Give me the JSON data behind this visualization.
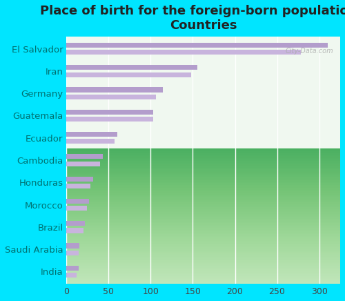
{
  "title": "Place of birth for the foreign-born population -\nCountries",
  "categories": [
    "El Salvador",
    "Iran",
    "Germany",
    "Guatemala",
    "Ecuador",
    "Cambodia",
    "Honduras",
    "Morocco",
    "Brazil",
    "Saudi Arabia",
    "India"
  ],
  "values_top": [
    310,
    155,
    114,
    103,
    60,
    43,
    32,
    27,
    22,
    15,
    14
  ],
  "values_bottom": [
    278,
    148,
    106,
    103,
    57,
    40,
    28,
    24,
    20,
    14,
    12
  ],
  "bar_color_top": "#b39dcc",
  "bar_color_bottom": "#c8b4dd",
  "background_outer": "#00e5ff",
  "label_color": "#007070",
  "title_color": "#222222",
  "xlim": [
    0,
    325
  ],
  "xticks": [
    0,
    50,
    100,
    150,
    200,
    250,
    300
  ],
  "grid_color": "#ffffff",
  "title_fontsize": 13,
  "label_fontsize": 9.5,
  "tick_fontsize": 9
}
